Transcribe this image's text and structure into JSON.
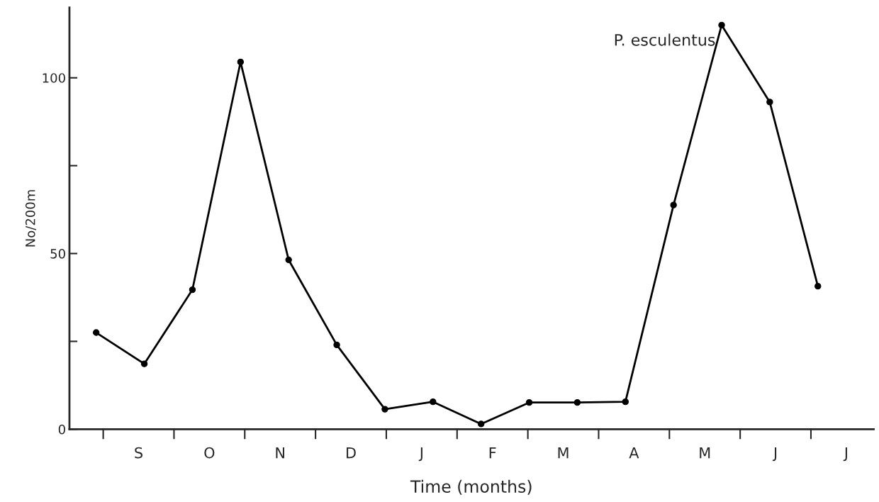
{
  "chart_data": {
    "type": "line",
    "title": "P. esculentus",
    "xlabel": "Time (months)",
    "ylabel": "No/200m",
    "categories": [
      null,
      null,
      null,
      null,
      null,
      null,
      null,
      null,
      null,
      null,
      null,
      null,
      null,
      null,
      null,
      null
    ],
    "values": [
      27.5,
      18.6,
      39.7,
      104.5,
      48.2,
      24.0,
      5.7,
      7.8,
      1.5,
      7.6,
      7.6,
      7.8,
      63.8,
      115,
      93.1,
      40.7
    ],
    "color": "#000000",
    "marker": "circle",
    "line_style": "solid",
    "annotations": [
      "S",
      "O",
      "N",
      "D",
      "J",
      "F",
      "M",
      "A",
      "M",
      "J",
      "J"
    ],
    "ylim": [
      0,
      120
    ],
    "yticks": [
      0,
      {
        "value": 25,
        "label": null
      },
      50,
      {
        "value": 75,
        "label": null
      },
      100
    ]
  }
}
